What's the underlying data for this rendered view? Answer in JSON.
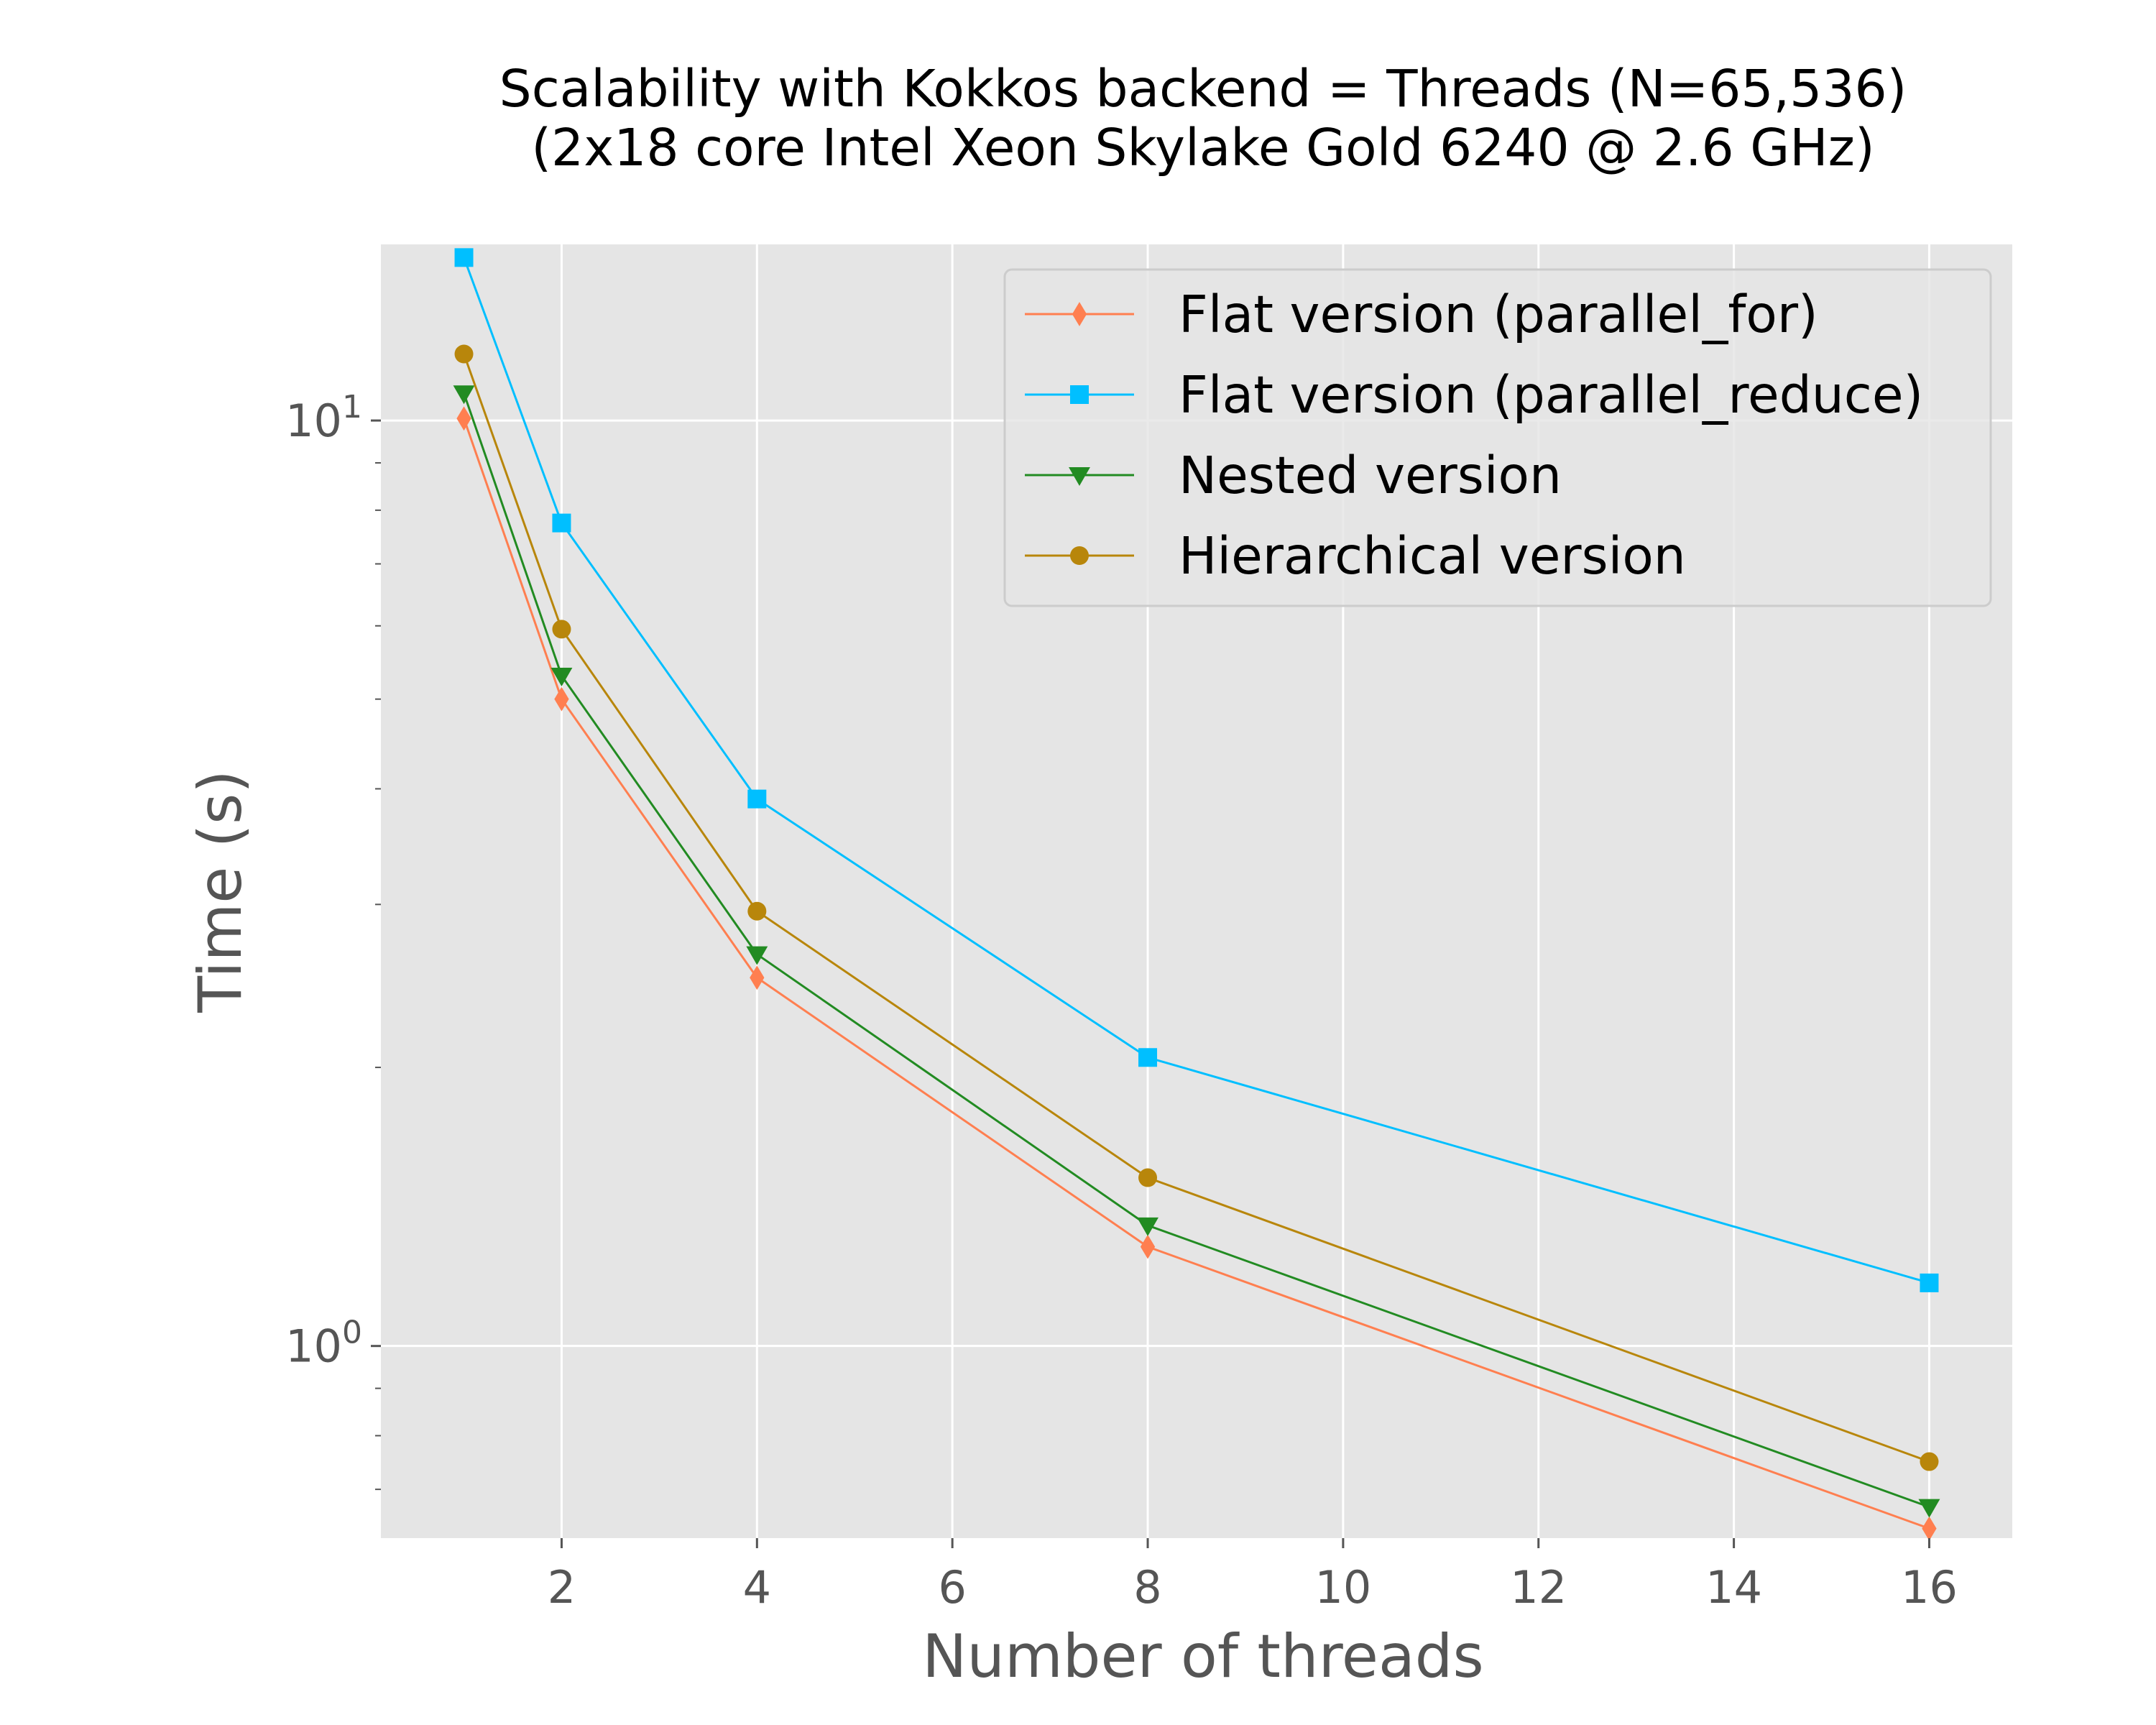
{
  "chart_data": {
    "type": "line",
    "title": "Scalability with Kokkos backend = Threads (N=65,536)",
    "subtitle": "(2x18 core Intel Xeon Skylake Gold 6240 @ 2.6 GHz)",
    "xlabel": "Number of threads",
    "ylabel": "Time (s)",
    "x": [
      1,
      2,
      4,
      8,
      16
    ],
    "xlim": [
      0.15,
      16.85
    ],
    "ylim": [
      0.62,
      15.5
    ],
    "yscale": "log",
    "xticks": [
      2,
      4,
      6,
      8,
      10,
      12,
      14,
      16
    ],
    "xtick_labels": [
      "2",
      "4",
      "6",
      "8",
      "10",
      "12",
      "14",
      "16"
    ],
    "yticks_major": [
      1,
      10
    ],
    "ytick_base": "10",
    "ytick_exponents": [
      "0",
      "1"
    ],
    "grid": true,
    "background": "#e5e5e5",
    "legend_position": "top-right",
    "series": [
      {
        "name": "Flat version (parallel_for)",
        "color": "#ff7f50",
        "marker": "diamond",
        "values": [
          10.05,
          5.0,
          2.5,
          1.28,
          0.635
        ]
      },
      {
        "name": "Flat version (parallel_reduce)",
        "color": "#00bfff",
        "marker": "square",
        "values": [
          15.0,
          7.75,
          3.9,
          2.05,
          1.17
        ]
      },
      {
        "name": "Nested version",
        "color": "#228b22",
        "marker": "triangle-down",
        "values": [
          10.7,
          5.3,
          2.65,
          1.35,
          0.67
        ]
      },
      {
        "name": "Hierarchical version",
        "color": "#b8860b",
        "marker": "circle",
        "values": [
          11.8,
          5.95,
          2.95,
          1.52,
          0.75
        ]
      }
    ]
  }
}
